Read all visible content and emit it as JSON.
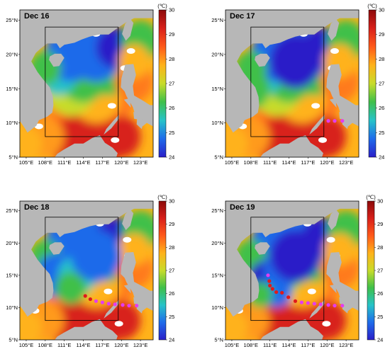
{
  "colors": {
    "land": "#b7b7b7",
    "cloud": "#ffffff",
    "track_red": "#e01a1a",
    "track_magenta": "#e43cf0",
    "box": "#000000"
  },
  "colorbar": {
    "unit": "(℃)",
    "min": 24,
    "max": 30,
    "ticks": [
      "30",
      "29",
      "28",
      "27",
      "26",
      "25",
      "24"
    ],
    "stops": [
      "#2a1fc8",
      "#1f6bea",
      "#27c3c8",
      "#3fc04a",
      "#c8dc2a",
      "#ffb21a",
      "#ff5a1a",
      "#d8201a",
      "#8c0a0a"
    ]
  },
  "axes": {
    "lon_labels": [
      "105°E",
      "108°E",
      "111°E",
      "114°E",
      "117°E",
      "120°E",
      "123°E"
    ],
    "lat_labels": [
      "25°N",
      "20°N",
      "15°N",
      "10°N",
      "5°N"
    ],
    "lon_range": [
      104,
      125
    ],
    "lat_range": [
      5,
      26.5
    ]
  },
  "study_box": {
    "lon": [
      108,
      119.5
    ],
    "lat": [
      8,
      24
    ]
  },
  "panels": [
    {
      "date": "Dec 16",
      "track": []
    },
    {
      "date": "Dec 17",
      "track": [
        {
          "lon": 120.2,
          "lat": 10.3,
          "color": "magenta"
        },
        {
          "lon": 121.2,
          "lat": 10.3,
          "color": "magenta"
        },
        {
          "lon": 122.4,
          "lat": 10.3,
          "color": "magenta"
        }
      ]
    },
    {
      "date": "Dec 18",
      "track": [
        {
          "lon": 114.3,
          "lat": 11.8,
          "color": "red"
        },
        {
          "lon": 115.1,
          "lat": 11.3,
          "color": "red"
        },
        {
          "lon": 116.0,
          "lat": 11.0,
          "color": "magenta"
        },
        {
          "lon": 117.0,
          "lat": 10.8,
          "color": "magenta"
        },
        {
          "lon": 118.0,
          "lat": 10.6,
          "color": "magenta"
        },
        {
          "lon": 119.0,
          "lat": 10.5,
          "color": "magenta"
        },
        {
          "lon": 120.2,
          "lat": 10.4,
          "color": "magenta"
        },
        {
          "lon": 121.2,
          "lat": 10.3,
          "color": "magenta"
        },
        {
          "lon": 122.4,
          "lat": 10.3,
          "color": "magenta"
        }
      ]
    },
    {
      "date": "Dec 19",
      "track": [
        {
          "lon": 110.7,
          "lat": 15.0,
          "color": "magenta"
        },
        {
          "lon": 110.9,
          "lat": 14.1,
          "color": "red"
        },
        {
          "lon": 111.0,
          "lat": 13.4,
          "color": "red"
        },
        {
          "lon": 111.4,
          "lat": 12.9,
          "color": "red"
        },
        {
          "lon": 112.0,
          "lat": 12.4,
          "color": "red"
        },
        {
          "lon": 112.9,
          "lat": 12.3,
          "color": "red"
        },
        {
          "lon": 113.9,
          "lat": 11.6,
          "color": "red"
        },
        {
          "lon": 115.0,
          "lat": 11.0,
          "color": "red"
        },
        {
          "lon": 116.0,
          "lat": 10.8,
          "color": "magenta"
        },
        {
          "lon": 117.0,
          "lat": 10.7,
          "color": "magenta"
        },
        {
          "lon": 118.0,
          "lat": 10.6,
          "color": "magenta"
        },
        {
          "lon": 119.0,
          "lat": 10.5,
          "color": "magenta"
        },
        {
          "lon": 120.2,
          "lat": 10.4,
          "color": "magenta"
        },
        {
          "lon": 121.2,
          "lat": 10.3,
          "color": "magenta"
        },
        {
          "lon": 122.4,
          "lat": 10.3,
          "color": "magenta"
        }
      ]
    }
  ]
}
